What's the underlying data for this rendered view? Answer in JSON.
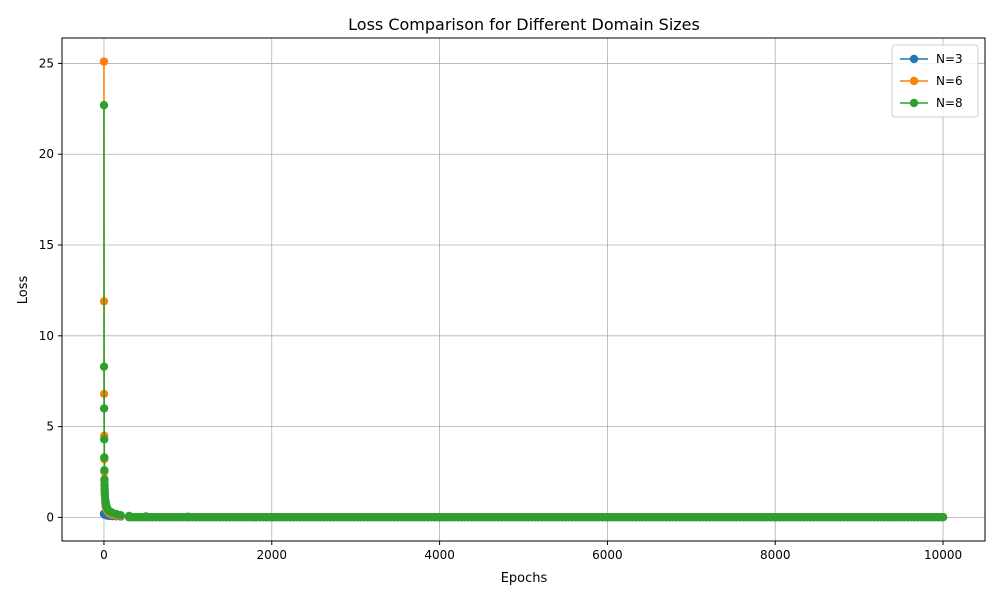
{
  "chart_data": {
    "type": "line",
    "title": "Loss Comparison for Different Domain Sizes",
    "xlabel": "Epochs",
    "ylabel": "Loss",
    "xlim": [
      -500,
      10500
    ],
    "ylim": [
      -1.3,
      26.4
    ],
    "xticks": [
      0,
      2000,
      4000,
      6000,
      8000,
      10000
    ],
    "yticks": [
      0,
      5,
      10,
      15,
      20,
      25
    ],
    "grid": true,
    "legend_position": "top-right",
    "series": [
      {
        "name": "N=3",
        "color": "#1f77b4",
        "marker": "circle",
        "x": [
          0,
          2,
          4,
          6,
          8,
          10,
          15,
          20,
          30,
          40,
          60,
          80,
          100,
          150,
          200,
          300,
          500,
          1000,
          2000,
          4000,
          6000,
          8000,
          10000
        ],
        "y": [
          0.2,
          0.19,
          0.18,
          0.17,
          0.16,
          0.15,
          0.14,
          0.13,
          0.12,
          0.1,
          0.09,
          0.08,
          0.07,
          0.06,
          0.05,
          0.04,
          0.03,
          0.02,
          0.01,
          0.01,
          0.01,
          0.01,
          0.01
        ]
      },
      {
        "name": "N=6",
        "color": "#ff7f0e",
        "marker": "circle",
        "x": [
          0,
          1,
          2,
          3,
          4,
          5,
          6,
          8,
          10,
          15,
          20,
          30,
          40,
          60,
          80,
          100,
          150,
          200,
          300,
          500,
          1000,
          2000,
          4000,
          6000,
          8000,
          10000
        ],
        "y": [
          25.1,
          11.9,
          6.8,
          4.5,
          3.2,
          2.5,
          2.0,
          1.5,
          1.2,
          0.8,
          0.6,
          0.45,
          0.35,
          0.25,
          0.2,
          0.15,
          0.1,
          0.08,
          0.05,
          0.04,
          0.03,
          0.02,
          0.02,
          0.01,
          0.01,
          0.01
        ]
      },
      {
        "name": "N=8",
        "color": "#2ca02c",
        "marker": "circle",
        "x": [
          0,
          1,
          2,
          3,
          4,
          5,
          6,
          7,
          8,
          10,
          12,
          15,
          20,
          25,
          30,
          40,
          50,
          60,
          80,
          100,
          150,
          200,
          300,
          500,
          1000,
          2000,
          4000,
          6000,
          8000,
          10000
        ],
        "y": [
          22.7,
          8.3,
          6.0,
          4.3,
          3.3,
          2.6,
          2.1,
          1.8,
          1.6,
          1.4,
          1.2,
          1.0,
          0.85,
          0.7,
          0.6,
          0.5,
          0.4,
          0.35,
          0.3,
          0.25,
          0.18,
          0.12,
          0.08,
          0.05,
          0.03,
          0.02,
          0.01,
          0.01,
          0.01,
          0.01
        ]
      }
    ]
  }
}
